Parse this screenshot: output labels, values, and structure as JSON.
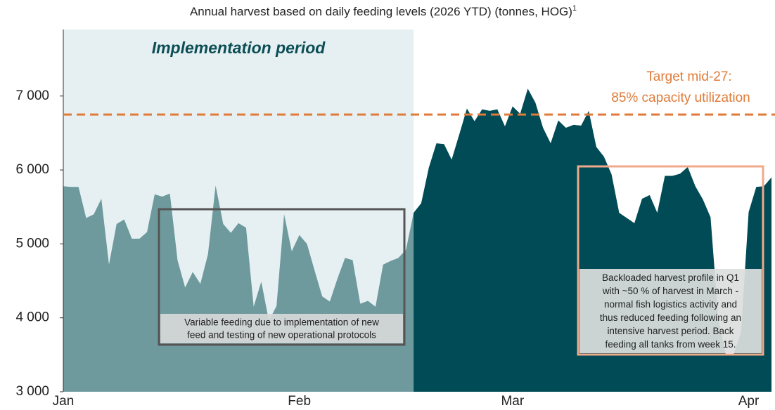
{
  "chart_data": {
    "type": "area",
    "title": "Annual harvest based on daily feeding levels (2026 YTD) (tonnes, HOG)",
    "title_footnote": "1",
    "x": [
      0,
      1,
      2,
      3,
      4,
      5,
      6,
      7,
      8,
      9,
      10,
      11,
      12,
      13,
      14,
      15,
      16,
      17,
      18,
      19,
      20,
      21,
      22,
      23,
      24,
      25,
      26,
      27,
      28,
      29,
      30,
      31,
      32,
      33,
      34,
      35,
      36,
      37,
      38,
      39,
      40,
      41,
      42,
      43,
      44,
      45,
      46,
      47,
      48,
      49,
      50,
      51,
      52,
      53,
      54,
      55,
      56,
      57,
      58,
      59,
      60,
      61,
      62,
      63,
      64,
      65,
      66,
      67,
      68,
      69,
      70,
      71,
      72,
      73,
      74,
      75,
      76,
      77,
      78,
      79,
      80,
      81,
      82,
      83,
      84,
      85,
      86,
      87,
      88,
      89,
      90,
      91,
      92,
      93
    ],
    "xlim": [
      0,
      93
    ],
    "xticks": [
      {
        "value": 0,
        "label": "Jan"
      },
      {
        "value": 31,
        "label": "Feb"
      },
      {
        "value": 59,
        "label": "Mar"
      },
      {
        "value": 90,
        "label": "Apr"
      }
    ],
    "ylim": [
      3000,
      7900
    ],
    "yticks": [
      {
        "value": 3000,
        "label": "3 000"
      },
      {
        "value": 4000,
        "label": "4 000"
      },
      {
        "value": 5000,
        "label": "5 000"
      },
      {
        "value": 6000,
        "label": "6 000"
      },
      {
        "value": 7000,
        "label": "7 000"
      }
    ],
    "series": [
      {
        "color": "#6e9a9d",
        "values": [
          5780,
          5770,
          5770,
          5350,
          5400,
          5610,
          4720,
          5270,
          5330,
          5070,
          5070,
          5160,
          5670,
          5640,
          5680,
          4780,
          4410,
          4620,
          4460,
          4860,
          5790,
          5270,
          5150,
          5280,
          5220,
          4150,
          4490,
          3960,
          4160,
          5400,
          4900,
          5120,
          5000,
          4640,
          4290,
          4220,
          4530,
          4810,
          4780,
          4190,
          4230,
          4150,
          4720,
          4770,
          4810,
          4920,
          5420,
          null,
          null,
          null,
          null,
          null,
          null,
          null,
          null,
          null,
          null,
          null,
          null,
          null,
          null,
          null,
          null,
          null,
          null,
          null,
          null,
          null,
          null,
          null,
          null,
          null,
          null,
          null,
          null,
          null,
          null,
          null,
          null,
          null,
          null,
          null,
          null,
          null,
          null,
          null,
          null,
          null,
          null,
          null,
          null,
          null,
          null,
          null
        ]
      },
      {
        "color": "#004b55",
        "values": [
          null,
          null,
          null,
          null,
          null,
          null,
          null,
          null,
          null,
          null,
          null,
          null,
          null,
          null,
          null,
          null,
          null,
          null,
          null,
          null,
          null,
          null,
          null,
          null,
          null,
          null,
          null,
          null,
          null,
          null,
          null,
          null,
          null,
          null,
          null,
          null,
          null,
          null,
          null,
          null,
          null,
          null,
          null,
          null,
          null,
          null,
          5420,
          5550,
          6030,
          6360,
          6350,
          6140,
          6480,
          6830,
          6660,
          6820,
          6800,
          6820,
          6590,
          6860,
          6760,
          7100,
          6910,
          6570,
          6360,
          6670,
          6570,
          6610,
          6600,
          6800,
          6310,
          6180,
          5940,
          5420,
          5350,
          5280,
          5610,
          5660,
          5420,
          5920,
          5920,
          5950,
          6040,
          5780,
          5600,
          5360,
          4000,
          3500,
          3500,
          3800,
          5430,
          5770,
          5780,
          5900
        ]
      }
    ],
    "period_label": "Implementation period",
    "period_color": "#e6f0f2",
    "target": {
      "value": 6750,
      "color": "#e07b39",
      "label": [
        "Target mid-27:",
        "85% capacity utilization"
      ]
    },
    "annotations": [
      {
        "color": "#555555",
        "text": [
          "Variable feeding due to implementation of new",
          "feed and testing of new operational protocols"
        ]
      },
      {
        "color": "#f0a98a",
        "text": [
          "Backloaded harvest profile in Q1",
          "with ~50 % of harvest in March -",
          "normal fish logistics activity and",
          "thus reduced feeding following an",
          "intensive harvest period. Back",
          "feeding all tanks from week 15."
        ]
      }
    ]
  }
}
